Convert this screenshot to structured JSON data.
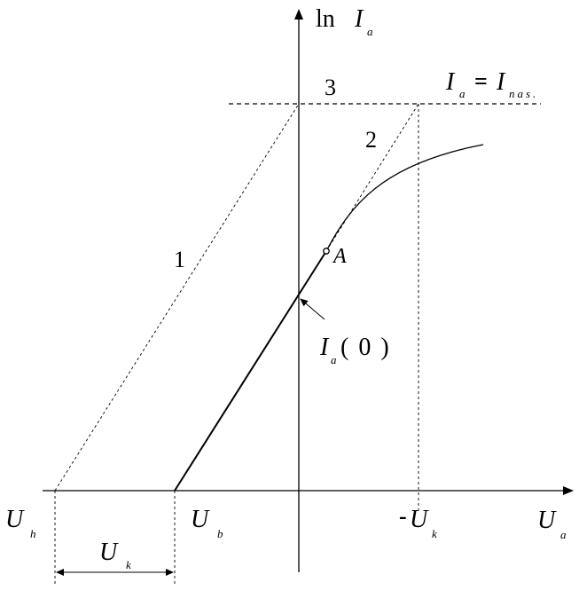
{
  "axes": {
    "y_label_ln": "ln",
    "y_label_I": "I",
    "y_label_sub": "a",
    "x_label_U": "U",
    "x_label_sub": "a"
  },
  "curve_labels": {
    "line1": "1",
    "line2": "2",
    "line3": "3"
  },
  "saturation": {
    "I": "I",
    "I_sub": "a",
    "eq": "=",
    "I2": "I",
    "I2_sub": "nas."
  },
  "point_A": "A",
  "intercept": {
    "I": "I",
    "sub": "a",
    "arg": "( 0 )"
  },
  "x_marks": {
    "Uh": "U",
    "Uh_sub": "h",
    "Ub": "U",
    "Ub_sub": "b",
    "minus": "-",
    "Uk2": "U",
    "Uk2_sub": "k",
    "Uk": "U",
    "Uk_sub": "k"
  }
}
